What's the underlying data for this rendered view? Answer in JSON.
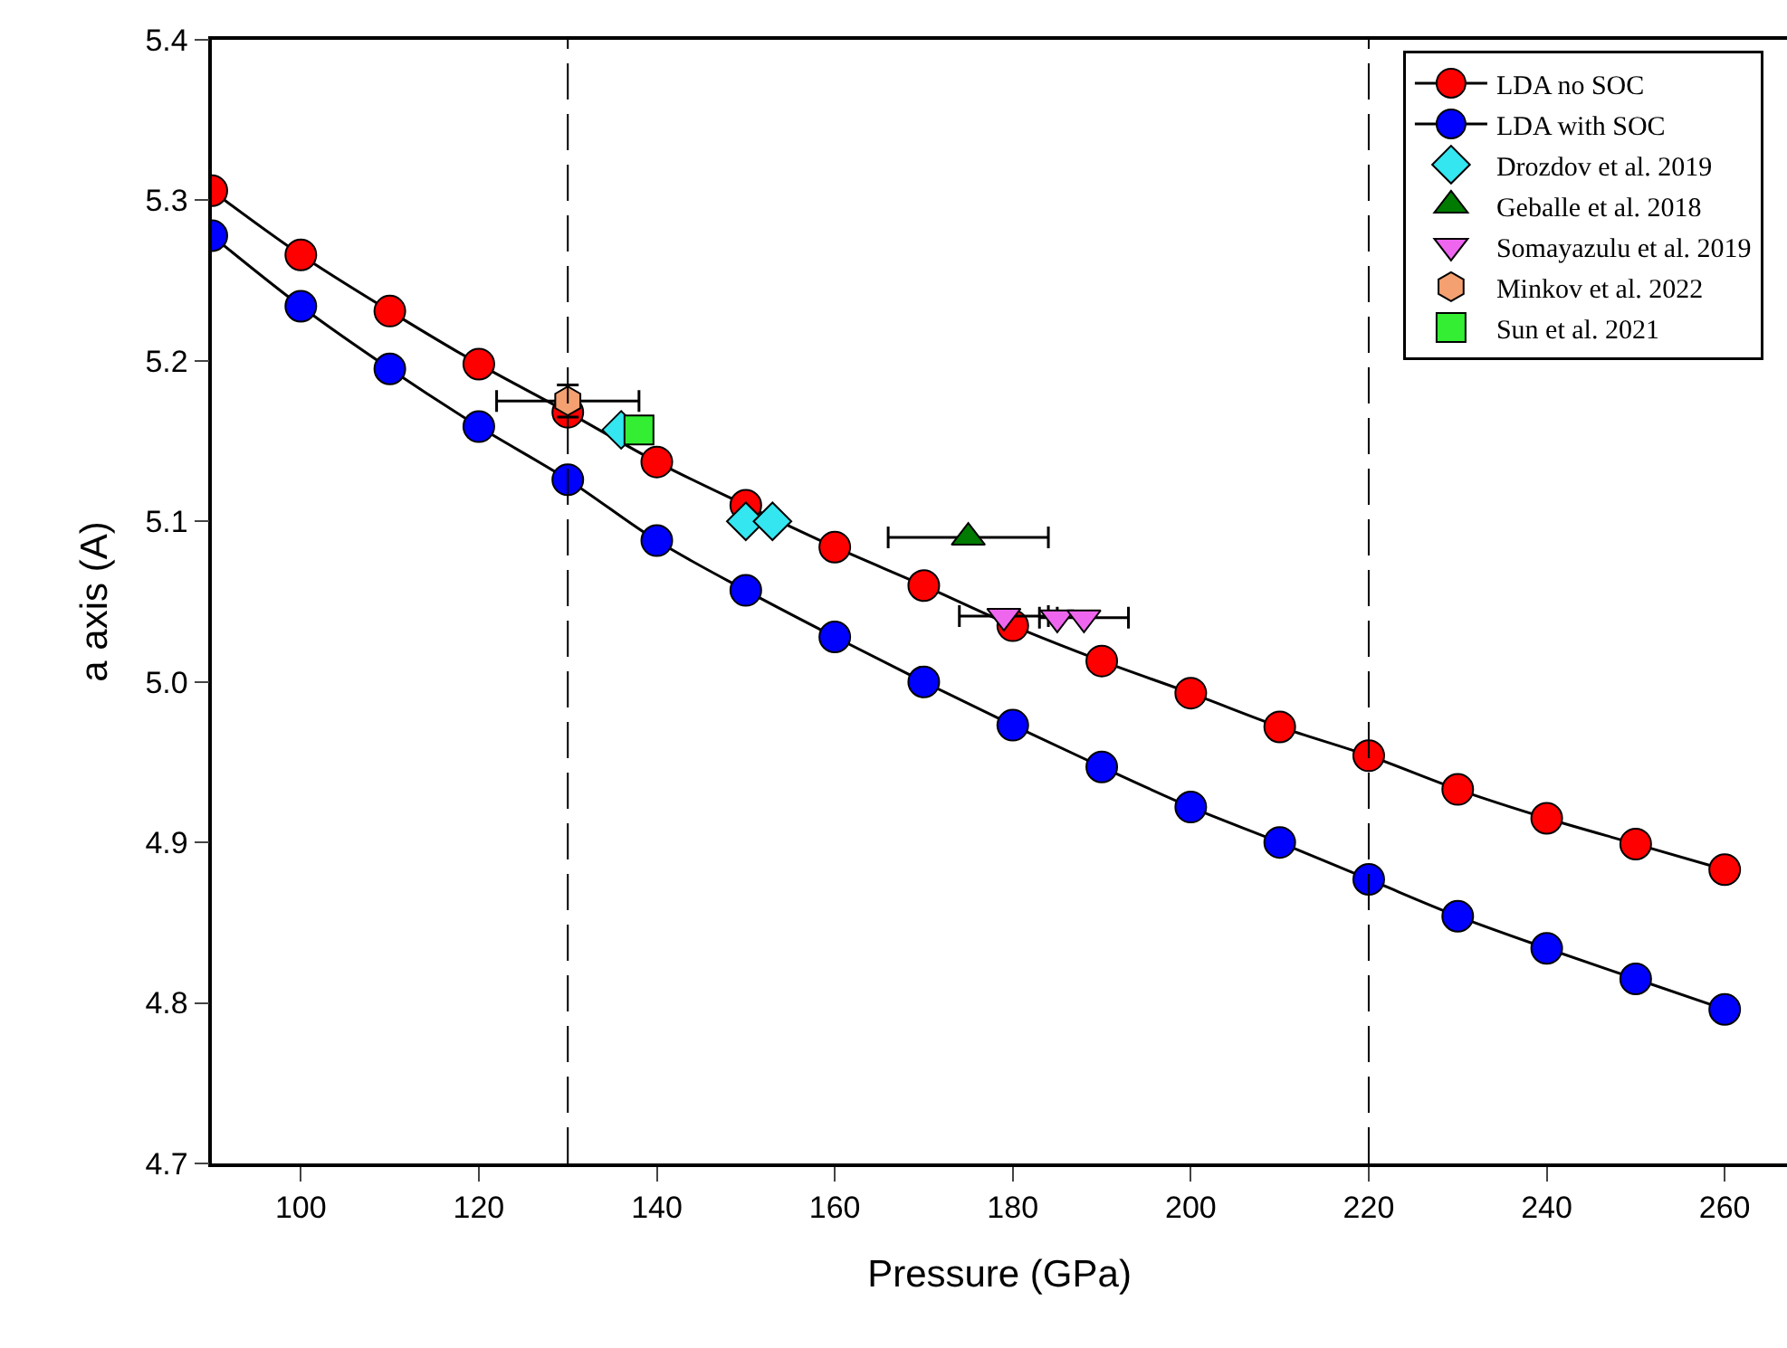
{
  "chart_data": {
    "type": "line",
    "xlabel": "Pressure (GPa)",
    "ylabel": "a axis (A)",
    "xlim": [
      90,
      267
    ],
    "xticks": [
      100,
      120,
      140,
      160,
      180,
      200,
      220,
      240,
      260
    ],
    "ylim": [
      4.7,
      5.4
    ],
    "yticks": [
      {
        "value": 4.7,
        "label": "4.7"
      },
      {
        "value": 4.8,
        "label": "4.8"
      },
      {
        "value": 4.9,
        "label": "4.9"
      },
      {
        "value": 5.0,
        "label": "5.0"
      },
      {
        "value": 5.1,
        "label": "5.1"
      },
      {
        "value": 5.2,
        "label": "5.2"
      },
      {
        "value": 5.3,
        "label": "5.3"
      },
      {
        "value": 5.4,
        "label": "5.4"
      }
    ],
    "grid": false,
    "legend": "top right",
    "line_style": "solid",
    "ref_lines": [
      {
        "axis": "x",
        "value": 130,
        "line_style": "dashed",
        "color": "#000000"
      },
      {
        "axis": "x",
        "value": 220,
        "line_style": "dashed",
        "color": "#000000"
      }
    ],
    "series": [
      {
        "name": "LDA no SOC",
        "marker": "circle",
        "color": "#ff0000",
        "x": [
          90,
          100,
          110,
          120,
          130,
          140,
          150,
          160,
          170,
          180,
          190,
          200,
          210,
          220,
          230,
          240,
          250,
          260
        ],
        "values": [
          5.306,
          5.266,
          5.231,
          5.198,
          5.168,
          5.137,
          5.11,
          5.084,
          5.06,
          5.035,
          5.013,
          4.993,
          4.972,
          4.954,
          4.933,
          4.915,
          4.899,
          4.883
        ]
      },
      {
        "name": "LDA with SOC",
        "marker": "circle",
        "color": "#0000ff",
        "x": [
          90,
          100,
          110,
          120,
          130,
          140,
          150,
          160,
          170,
          180,
          190,
          200,
          210,
          220,
          230,
          240,
          250,
          260
        ],
        "values": [
          5.278,
          5.234,
          5.195,
          5.159,
          5.126,
          5.088,
          5.057,
          5.028,
          5.0,
          4.973,
          4.947,
          4.922,
          4.9,
          4.877,
          4.854,
          4.834,
          4.815,
          4.796
        ]
      },
      {
        "name": "Drozdov et al. 2019",
        "type": "scatter",
        "marker": "diamond",
        "color": "#33e6f0",
        "x": [
          136,
          150,
          153
        ],
        "values": [
          5.157,
          5.1,
          5.1
        ]
      },
      {
        "name": "Geballe et al. 2018",
        "type": "scatter",
        "marker": "triangle",
        "color": "#007a00",
        "x": [
          175
        ],
        "values": [
          5.09
        ],
        "xerrors": [
          9
        ]
      },
      {
        "name": "Somayazulu et al. 2019",
        "type": "scatter",
        "marker": "triangle-down",
        "color": "#ee66ee",
        "x": [
          179,
          185,
          188
        ],
        "values": [
          5.041,
          5.04,
          5.04
        ],
        "xerrors": [
          5,
          null,
          5
        ]
      },
      {
        "name": "Minkov et al. 2022",
        "type": "scatter",
        "color": "#f4a070",
        "x": [
          130
        ],
        "values": [
          5.175
        ],
        "xerrors": [
          8
        ],
        "errors": [
          0.01
        ]
      },
      {
        "name": "Sun et al. 2021",
        "type": "scatter",
        "marker": "square",
        "color": "#33ee33",
        "x": [
          138
        ],
        "values": [
          5.157
        ]
      }
    ]
  }
}
